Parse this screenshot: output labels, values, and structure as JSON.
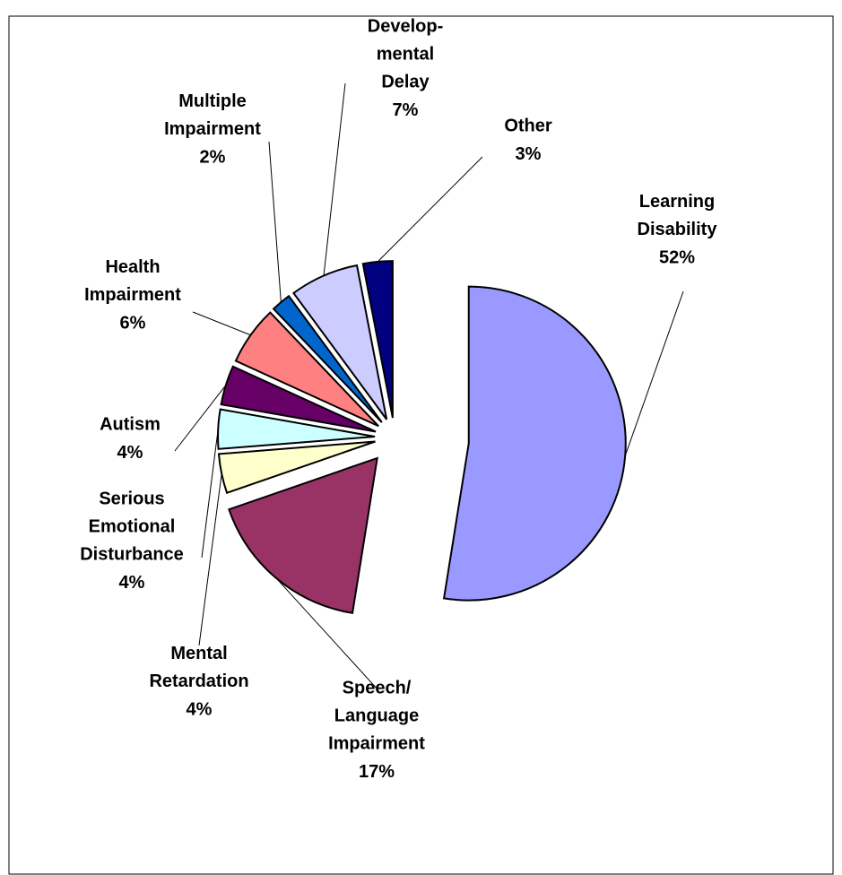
{
  "chart_data": {
    "type": "pie",
    "categories": [
      "Learning\nDisability",
      "Speech/\nLanguage\nImpairment",
      "Mental\nRetardation",
      "Serious\nEmotional\nDisturbance",
      "Autism",
      "Health\nImpairment",
      "Multiple\nImpairment",
      "Develop-\nmental\nDelay",
      "Other"
    ],
    "values": [
      52,
      17,
      4,
      4,
      4,
      6,
      2,
      7,
      3
    ],
    "value_labels": [
      "52%",
      "17%",
      "4%",
      "4%",
      "4%",
      "6%",
      "2%",
      "7%",
      "3%"
    ],
    "colors": [
      "#9999ff",
      "#993366",
      "#ffffcc",
      "#ccffff",
      "#660066",
      "#ff8080",
      "#0066cc",
      "#ccccff",
      "#000080"
    ]
  }
}
